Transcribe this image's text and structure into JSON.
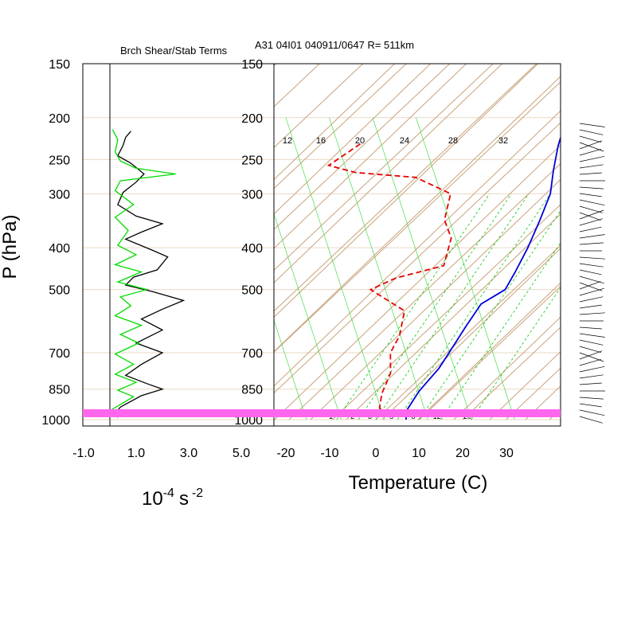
{
  "title": "A31 04I01 040911/0647 R= 511km",
  "left_panel_title": "Brch Shear/Stab Terms",
  "y_axis_label": "P (hPa)",
  "left_x_label_base": "10",
  "left_x_label_exp": "-4",
  "left_x_label_unit": "s",
  "left_x_label_unit_exp": "-2",
  "right_x_label": "Temperature (C)",
  "pressure_levels": [
    "150",
    "200",
    "250",
    "300",
    "400",
    "500",
    "700",
    "850",
    "1000"
  ],
  "left_x_ticks": [
    "-1.0",
    "1.0",
    "3.0",
    "5.0"
  ],
  "temp_ticks": [
    "-20",
    "-10",
    "0",
    "10",
    "20",
    "30"
  ],
  "mixing_ratio_labels": [
    "1",
    "2",
    "3",
    "5",
    "8",
    "12",
    "20"
  ],
  "moist_adiabat_labels": [
    "12",
    "16",
    "20",
    "24",
    "28",
    "32"
  ],
  "colors": {
    "background": "#ffffff",
    "skewt_lines": "#c8a27a",
    "isobar_lines": "#ead8c4",
    "mixing_ratio": "#00c800",
    "moist_adiabat": "#46dc46",
    "temperature": "#0000dc",
    "dewpoint": "#e60000",
    "shear_term": "#000000",
    "stability_term": "#00dc00",
    "surface_band": "#ff66ee",
    "wind_barbs": "#000000"
  },
  "chart_data": [
    {
      "type": "line",
      "panel": "Brch Shear/Stab Terms",
      "y_axis": "pressure (hPa), log scale",
      "ylim": [
        1000,
        150
      ],
      "xlim": [
        -1.0,
        5.0
      ],
      "series": [
        {
          "color": "black",
          "points": [
            [
              0.8,
              215
            ],
            [
              0.6,
              222
            ],
            [
              0.5,
              232
            ],
            [
              0.3,
              245
            ],
            [
              0.8,
              255
            ],
            [
              1.3,
              270
            ],
            [
              1.0,
              282
            ],
            [
              0.5,
              298
            ],
            [
              0.3,
              318
            ],
            [
              1.0,
              338
            ],
            [
              2.0,
              352
            ],
            [
              1.2,
              368
            ],
            [
              0.6,
              382
            ],
            [
              1.6,
              405
            ],
            [
              2.2,
              420
            ],
            [
              1.8,
              450
            ],
            [
              0.9,
              468
            ],
            [
              0.6,
              488
            ],
            [
              1.6,
              505
            ],
            [
              2.8,
              530
            ],
            [
              2.0,
              555
            ],
            [
              1.2,
              585
            ],
            [
              2.0,
              620
            ],
            [
              1.0,
              665
            ],
            [
              2.0,
              700
            ],
            [
              1.2,
              745
            ],
            [
              0.6,
              790
            ],
            [
              1.4,
              825
            ],
            [
              2.0,
              850
            ],
            [
              1.2,
              880
            ],
            [
              0.4,
              935
            ],
            [
              0.1,
              985
            ]
          ]
        },
        {
          "color": "green",
          "points": [
            [
              0.1,
              213
            ],
            [
              0.3,
              225
            ],
            [
              0.2,
              240
            ],
            [
              0.4,
              252
            ],
            [
              1.0,
              262
            ],
            [
              2.5,
              270
            ],
            [
              0.4,
              280
            ],
            [
              0.2,
              295
            ],
            [
              0.9,
              318
            ],
            [
              0.2,
              340
            ],
            [
              0.7,
              365
            ],
            [
              0.3,
              395
            ],
            [
              1.0,
              415
            ],
            [
              0.2,
              438
            ],
            [
              1.2,
              455
            ],
            [
              0.3,
              480
            ],
            [
              1.4,
              500
            ],
            [
              0.4,
              520
            ],
            [
              0.8,
              545
            ],
            [
              0.2,
              575
            ],
            [
              1.2,
              605
            ],
            [
              0.4,
              635
            ],
            [
              1.1,
              665
            ],
            [
              0.2,
              705
            ],
            [
              0.9,
              745
            ],
            [
              0.2,
              785
            ],
            [
              1.0,
              820
            ],
            [
              0.3,
              855
            ],
            [
              0.9,
              885
            ],
            [
              0.1,
              945
            ],
            [
              0.3,
              990
            ]
          ]
        }
      ]
    },
    {
      "type": "line",
      "panel": "Skew-T log-P diagram",
      "xlabel": "Temperature (C)",
      "ylabel": "P (hPa)",
      "y_axis": "pressure (hPa), log scale",
      "ylim": [
        1000,
        150
      ],
      "xlim": [
        -23,
        43
      ],
      "skewed": true,
      "series": [
        {
          "name": "temperature",
          "color": "blue",
          "style": "solid",
          "points": [
            [
              -29,
              205
            ],
            [
              -25,
              232
            ],
            [
              -20,
              265
            ],
            [
              -15,
              300
            ],
            [
              -11,
              345
            ],
            [
              -7,
              400
            ],
            [
              -4,
              455
            ],
            [
              -2,
              500
            ],
            [
              -4,
              540
            ],
            [
              -2,
              610
            ],
            [
              0,
              680
            ],
            [
              2,
              760
            ],
            [
              3,
              860
            ],
            [
              5,
              960
            ],
            [
              7,
              1000
            ]
          ]
        },
        {
          "name": "dewpoint",
          "color": "red",
          "style": "dashed",
          "points": [
            [
              -71,
              230
            ],
            [
              -73,
              258
            ],
            [
              -65,
              268
            ],
            [
              -50,
              275
            ],
            [
              -38,
              300
            ],
            [
              -33,
              345
            ],
            [
              -27,
              380
            ],
            [
              -22,
              440
            ],
            [
              -30,
              470
            ],
            [
              -33,
              500
            ],
            [
              -20,
              560
            ],
            [
              -15,
              640
            ],
            [
              -13,
              700
            ],
            [
              -8,
              780
            ],
            [
              -5,
              870
            ],
            [
              -2,
              940
            ],
            [
              1,
              975
            ],
            [
              2,
              1000
            ]
          ]
        }
      ]
    }
  ]
}
